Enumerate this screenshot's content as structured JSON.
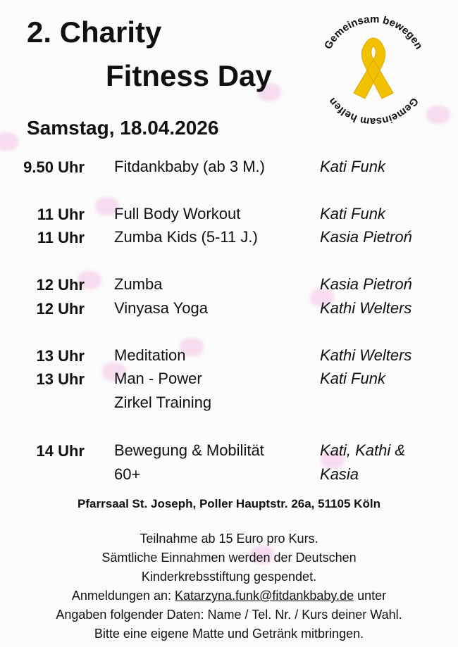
{
  "title": {
    "line1": "2. Charity",
    "line2": "Fitness Day"
  },
  "date": "Samstag, 18.04.2026",
  "logo": {
    "top_text": "Gemeinsam bewegen",
    "bottom_text": "Gemeinsam helfen",
    "ribbon_color": "#f2c200",
    "icon": "yellow-ribbon-icon"
  },
  "schedule": [
    {
      "time": "9.50 Uhr",
      "class": [
        "Fitdankbaby (ab 3 M.)"
      ],
      "instructor": [
        "Kati Funk"
      ]
    },
    {
      "time": "11 Uhr",
      "class": [
        "Full Body Workout"
      ],
      "instructor": [
        "Kati Funk"
      ]
    },
    {
      "time": "11 Uhr",
      "class": [
        "Zumba Kids (5-11 J.)"
      ],
      "instructor": [
        "Kasia Pietroń"
      ]
    },
    {
      "time": "12 Uhr",
      "class": [
        "Zumba"
      ],
      "instructor": [
        "Kasia Pietroń"
      ]
    },
    {
      "time": "12 Uhr",
      "class": [
        "Vinyasa Yoga"
      ],
      "instructor": [
        "Kathi Welters"
      ]
    },
    {
      "time": "13 Uhr",
      "class": [
        "Meditation"
      ],
      "instructor": [
        "Kathi Welters"
      ]
    },
    {
      "time": "13 Uhr",
      "class": [
        "Man - Power",
        "Zirkel Training"
      ],
      "instructor": [
        "Kati Funk"
      ]
    },
    {
      "time": "14 Uhr",
      "class": [
        "Bewegung & Mobilität",
        "60+"
      ],
      "instructor": [
        "Kati, Kathi &",
        "Kasia"
      ]
    }
  ],
  "address": "Pfarrsaal St. Joseph, Poller Hauptstr. 26a, 51105 Köln",
  "info": {
    "line1": "Teilnahme ab 15 Euro pro Kurs.",
    "line2": "Sämtliche Einnahmen werden der Deutschen",
    "line3": "Kinderkrebsstiftung gespendet.",
    "line4_prefix": "Anmeldungen an: ",
    "email": "Katarzyna.funk@fitdankbaby.de",
    "line4_suffix": " unter",
    "line5": "Angaben folgender Daten: Name / Tel. Nr. / Kurs deiner Wahl.",
    "line6": "Bitte eine eigene Matte und Getränk mitbringen."
  }
}
